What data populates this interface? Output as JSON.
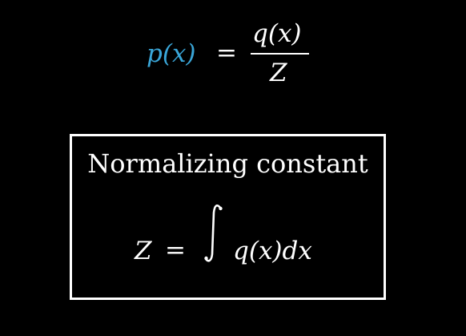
{
  "top_formula": {
    "lhs": "p(x)",
    "equals": "=",
    "numerator": "q(x)",
    "denominator": "Z"
  },
  "box": {
    "title": "Normalizing constant",
    "formula": {
      "lhs": "Z",
      "equals": "=",
      "integrand": "q(x)dx"
    }
  },
  "colors": {
    "background": "#000000",
    "text": "#ffffff",
    "accent": "#3aa6d8"
  },
  "icons": {
    "integral": "integral-sign"
  }
}
